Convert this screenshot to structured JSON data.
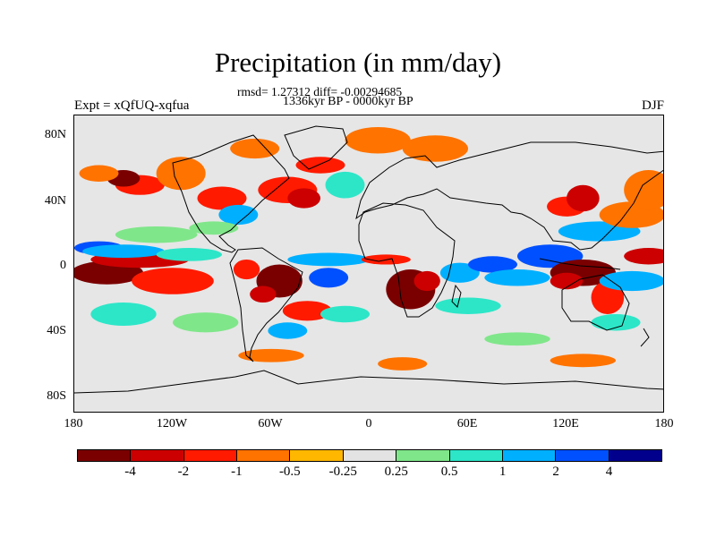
{
  "title": "Precipitation (in mm/day)",
  "stats": "rmsd= 1.27312 diff= -0.00294685",
  "period": "1336kyr BP - 0000kyr BP",
  "experiment": "Expt = xQfUQ-xqfua",
  "season": "DJF",
  "map": {
    "projection": "cylindrical equidistant",
    "lon_range": [
      -180,
      180
    ],
    "lat_range": [
      -90,
      90
    ],
    "lat_labels": [
      "80N",
      "40N",
      "0",
      "40S",
      "80S"
    ],
    "lon_labels": [
      "180",
      "120W",
      "60W",
      "0",
      "60E",
      "120E",
      "180"
    ],
    "anomaly_blobs": [
      {
        "lon": -160,
        "lat": -5,
        "rx": 22,
        "ry": 7,
        "level": -4
      },
      {
        "lon": -140,
        "lat": 3,
        "rx": 30,
        "ry": 5,
        "level": -2
      },
      {
        "lon": -120,
        "lat": -10,
        "rx": 25,
        "ry": 8,
        "level": -1
      },
      {
        "lon": -165,
        "lat": 10,
        "rx": 15,
        "ry": 4,
        "level": 4
      },
      {
        "lon": -150,
        "lat": 8,
        "rx": 25,
        "ry": 4,
        "level": 2
      },
      {
        "lon": -110,
        "lat": 6,
        "rx": 20,
        "ry": 4,
        "level": 1
      },
      {
        "lon": -130,
        "lat": 18,
        "rx": 25,
        "ry": 5,
        "level": 0.5
      },
      {
        "lon": -150,
        "lat": -30,
        "rx": 20,
        "ry": 7,
        "level": 1
      },
      {
        "lon": -100,
        "lat": -35,
        "rx": 20,
        "ry": 6,
        "level": 0.5
      },
      {
        "lon": -55,
        "lat": -10,
        "rx": 14,
        "ry": 10,
        "level": -4
      },
      {
        "lon": -65,
        "lat": -18,
        "rx": 8,
        "ry": 5,
        "level": -2
      },
      {
        "lon": -75,
        "lat": -3,
        "rx": 8,
        "ry": 6,
        "level": -1
      },
      {
        "lon": -38,
        "lat": -28,
        "rx": 15,
        "ry": 6,
        "level": -1
      },
      {
        "lon": -25,
        "lat": 3,
        "rx": 25,
        "ry": 4,
        "level": 2
      },
      {
        "lon": -25,
        "lat": -8,
        "rx": 12,
        "ry": 6,
        "level": 4
      },
      {
        "lon": -50,
        "lat": -40,
        "rx": 12,
        "ry": 5,
        "level": 2
      },
      {
        "lon": -15,
        "lat": -30,
        "rx": 15,
        "ry": 5,
        "level": 1
      },
      {
        "lon": 25,
        "lat": -15,
        "rx": 15,
        "ry": 12,
        "level": -4
      },
      {
        "lon": 35,
        "lat": -10,
        "rx": 8,
        "ry": 6,
        "level": -2
      },
      {
        "lon": 10,
        "lat": 3,
        "rx": 15,
        "ry": 3,
        "level": -1
      },
      {
        "lon": 55,
        "lat": -5,
        "rx": 12,
        "ry": 6,
        "level": 2
      },
      {
        "lon": 75,
        "lat": 0,
        "rx": 15,
        "ry": 5,
        "level": 4
      },
      {
        "lon": 90,
        "lat": -8,
        "rx": 20,
        "ry": 5,
        "level": 2
      },
      {
        "lon": 60,
        "lat": -25,
        "rx": 20,
        "ry": 5,
        "level": 1
      },
      {
        "lon": 110,
        "lat": 5,
        "rx": 20,
        "ry": 7,
        "level": 4
      },
      {
        "lon": 130,
        "lat": -5,
        "rx": 20,
        "ry": 8,
        "level": -4
      },
      {
        "lon": 120,
        "lat": -10,
        "rx": 10,
        "ry": 5,
        "level": -2
      },
      {
        "lon": 145,
        "lat": -20,
        "rx": 10,
        "ry": 10,
        "level": -1
      },
      {
        "lon": 160,
        "lat": -10,
        "rx": 20,
        "ry": 6,
        "level": 2
      },
      {
        "lon": 170,
        "lat": 5,
        "rx": 15,
        "ry": 5,
        "level": -2
      },
      {
        "lon": 140,
        "lat": 20,
        "rx": 25,
        "ry": 6,
        "level": 2
      },
      {
        "lon": 160,
        "lat": 30,
        "rx": 20,
        "ry": 8,
        "level": -0.5
      },
      {
        "lon": 120,
        "lat": 35,
        "rx": 12,
        "ry": 6,
        "level": -1
      },
      {
        "lon": 130,
        "lat": 40,
        "rx": 10,
        "ry": 8,
        "level": -2
      },
      {
        "lon": 170,
        "lat": 45,
        "rx": 15,
        "ry": 12,
        "level": -0.5
      },
      {
        "lon": -140,
        "lat": 48,
        "rx": 15,
        "ry": 6,
        "level": -1
      },
      {
        "lon": -150,
        "lat": 52,
        "rx": 10,
        "ry": 5,
        "level": -4
      },
      {
        "lon": -165,
        "lat": 55,
        "rx": 12,
        "ry": 5,
        "level": -0.5
      },
      {
        "lon": -115,
        "lat": 55,
        "rx": 15,
        "ry": 10,
        "level": -0.5
      },
      {
        "lon": -90,
        "lat": 40,
        "rx": 15,
        "ry": 7,
        "level": -1
      },
      {
        "lon": -80,
        "lat": 30,
        "rx": 12,
        "ry": 6,
        "level": 2
      },
      {
        "lon": -95,
        "lat": 22,
        "rx": 15,
        "ry": 4,
        "level": 0.5
      },
      {
        "lon": -50,
        "lat": 45,
        "rx": 18,
        "ry": 8,
        "level": -1
      },
      {
        "lon": -40,
        "lat": 40,
        "rx": 10,
        "ry": 6,
        "level": -2
      },
      {
        "lon": -15,
        "lat": 48,
        "rx": 12,
        "ry": 8,
        "level": 1
      },
      {
        "lon": -30,
        "lat": 60,
        "rx": 15,
        "ry": 5,
        "level": -1
      },
      {
        "lon": 5,
        "lat": 75,
        "rx": 20,
        "ry": 8,
        "level": -0.5
      },
      {
        "lon": 40,
        "lat": 70,
        "rx": 20,
        "ry": 8,
        "level": -0.5
      },
      {
        "lon": -70,
        "lat": 70,
        "rx": 15,
        "ry": 6,
        "level": -0.5
      },
      {
        "lon": -60,
        "lat": -55,
        "rx": 20,
        "ry": 4,
        "level": -0.5
      },
      {
        "lon": 20,
        "lat": -60,
        "rx": 15,
        "ry": 4,
        "level": -0.5
      },
      {
        "lon": 130,
        "lat": -58,
        "rx": 20,
        "ry": 4,
        "level": -0.5
      },
      {
        "lon": 90,
        "lat": -45,
        "rx": 20,
        "ry": 4,
        "level": 0.5
      },
      {
        "lon": 150,
        "lat": -35,
        "rx": 15,
        "ry": 5,
        "level": 1
      }
    ]
  },
  "colorbar": {
    "colors": [
      "#7a0000",
      "#cc0000",
      "#ff1a00",
      "#ff7300",
      "#ffb700",
      "#e3e3e3",
      "#80e68a",
      "#2de6c8",
      "#00b0ff",
      "#0050ff",
      "#00008c"
    ],
    "tick_labels": [
      "-4",
      "-2",
      "-1",
      "-0.5",
      "-0.25",
      "0.25",
      "0.5",
      "1",
      "2",
      "4"
    ]
  }
}
